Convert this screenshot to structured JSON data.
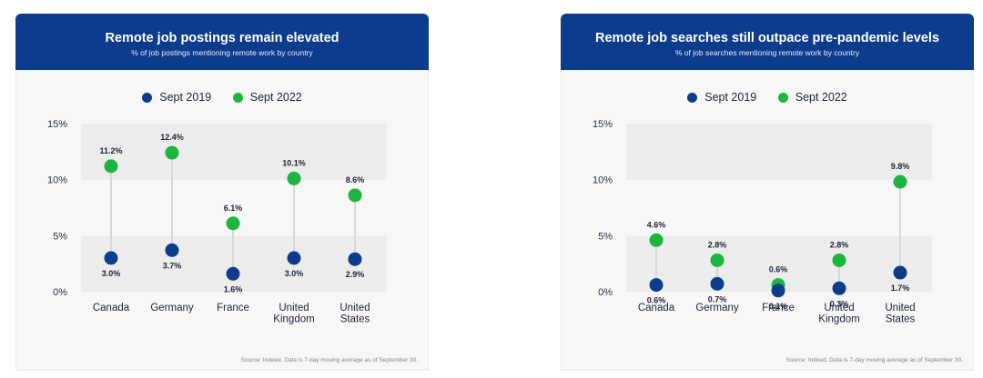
{
  "colors": {
    "header_bg": "#0e3c8c",
    "sept2019": "#0e3c8c",
    "sept2022": "#1db43f",
    "connector": "#d7d7d7",
    "band": "#ececec"
  },
  "chart_data": [
    {
      "type": "dumbbell",
      "title": "Remote job postings remain elevated",
      "subtitle": "% of job postings mentioning remote work by country",
      "legend": [
        "Sept 2019",
        "Sept 2022"
      ],
      "legend_position": "top-center",
      "categories": [
        [
          "Canada"
        ],
        [
          "Germany"
        ],
        [
          "France"
        ],
        [
          "United",
          "Kingdom"
        ],
        [
          "United",
          "States"
        ]
      ],
      "yticks": [
        "0%",
        "5%",
        "10%",
        "15%"
      ],
      "ylim": [
        0,
        15
      ],
      "series": [
        {
          "name": "Sept 2019",
          "values": [
            3.0,
            3.7,
            1.6,
            3.0,
            2.9
          ],
          "labels": [
            "3.0%",
            "3.7%",
            "1.6%",
            "3.0%",
            "2.9%"
          ]
        },
        {
          "name": "Sept 2022",
          "values": [
            11.2,
            12.4,
            6.1,
            10.1,
            8.6
          ],
          "labels": [
            "11.2%",
            "12.4%",
            "6.1%",
            "10.1%",
            "8.6%"
          ]
        }
      ],
      "source": "Source: Indeed. Data is 7-day moving average as of September 30."
    },
    {
      "type": "dumbbell",
      "title": "Remote job searches still outpace pre-pandemic levels",
      "subtitle": "% of job searches mentioning remote work by country",
      "legend": [
        "Sept 2019",
        "Sept 2022"
      ],
      "legend_position": "top-center",
      "categories": [
        [
          "Canada"
        ],
        [
          "Germany"
        ],
        [
          "France"
        ],
        [
          "United",
          "Kingdom"
        ],
        [
          "United",
          "States"
        ]
      ],
      "yticks": [
        "0%",
        "5%",
        "10%",
        "15%"
      ],
      "ylim": [
        0,
        15
      ],
      "series": [
        {
          "name": "Sept 2019",
          "values": [
            0.6,
            0.7,
            0.1,
            0.3,
            1.7
          ],
          "labels": [
            "0.6%",
            "0.7%",
            "0.1%",
            "0.3%",
            "1.7%"
          ]
        },
        {
          "name": "Sept 2022",
          "values": [
            4.6,
            2.8,
            0.6,
            2.8,
            9.8
          ],
          "labels": [
            "4.6%",
            "2.8%",
            "0.6%",
            "2.8%",
            "9.8%"
          ]
        }
      ],
      "source": "Source: Indeed. Data is 7-day moving average as of September 30."
    }
  ]
}
